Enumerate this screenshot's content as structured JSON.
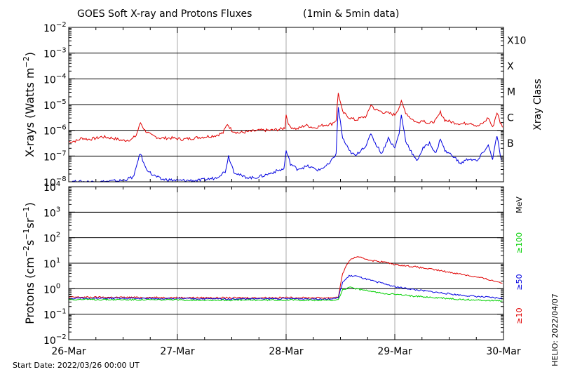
{
  "chart_data": {
    "type": "line",
    "title": "GOES Soft X-ray and Protons Fluxes",
    "subtitle": "(1min & 5min data)",
    "x_tick_labels": [
      "26-Mar",
      "27-Mar",
      "28-Mar",
      "29-Mar",
      "30-Mar"
    ],
    "start_date_label": "Start Date: 2022/03/26 00:00 UT",
    "helio_label": "HELIO: 2022/04/07",
    "x_range_days": [
      0,
      4
    ],
    "panels": [
      {
        "name": "xray",
        "ylabel": "X-rays (Watts m⁻²)",
        "ylabel_parts": {
          "main": "X-rays (Watts m",
          "sup": "−2",
          "end": ")"
        },
        "yscale": "log",
        "ylim": [
          1e-08,
          0.01
        ],
        "y_ticks": [
          {
            "exp": -2,
            "label": "10",
            "sup": "−2"
          },
          {
            "exp": -3,
            "label": "10",
            "sup": "−3"
          },
          {
            "exp": -4,
            "label": "10",
            "sup": "−4"
          },
          {
            "exp": -5,
            "label": "10",
            "sup": "−5"
          },
          {
            "exp": -6,
            "label": "10",
            "sup": "−6"
          },
          {
            "exp": -7,
            "label": "10",
            "sup": "−7"
          },
          {
            "exp": -8,
            "label": "10",
            "sup": "−8"
          }
        ],
        "right_axis_title": "Xray Class",
        "classes": [
          {
            "label": "X10",
            "exp": -3
          },
          {
            "label": "X",
            "exp": -4
          },
          {
            "label": "M",
            "exp": -5
          },
          {
            "label": "C",
            "exp": -6
          },
          {
            "label": "B",
            "exp": -7
          }
        ],
        "grid": true,
        "series": [
          {
            "color": "#e00000",
            "points": [
              [
                0,
                -6.45
              ],
              [
                0.08,
                -6.4
              ],
              [
                0.12,
                -6.3
              ],
              [
                0.18,
                -6.35
              ],
              [
                0.26,
                -6.3
              ],
              [
                0.3,
                -6.25
              ],
              [
                0.4,
                -6.3
              ],
              [
                0.5,
                -6.4
              ],
              [
                0.58,
                -6.35
              ],
              [
                0.62,
                -6.2
              ],
              [
                0.66,
                -5.7
              ],
              [
                0.7,
                -6.0
              ],
              [
                0.76,
                -6.2
              ],
              [
                0.84,
                -6.3
              ],
              [
                0.95,
                -6.3
              ],
              [
                1.05,
                -6.35
              ],
              [
                1.15,
                -6.3
              ],
              [
                1.25,
                -6.25
              ],
              [
                1.35,
                -6.2
              ],
              [
                1.42,
                -6.1
              ],
              [
                1.46,
                -5.75
              ],
              [
                1.5,
                -6.0
              ],
              [
                1.56,
                -6.1
              ],
              [
                1.66,
                -6.05
              ],
              [
                1.76,
                -6.0
              ],
              [
                1.86,
                -6.0
              ],
              [
                1.96,
                -5.95
              ],
              [
                1.99,
                -5.9
              ],
              [
                2.0,
                -5.4
              ],
              [
                2.03,
                -5.85
              ],
              [
                2.1,
                -5.95
              ],
              [
                2.18,
                -5.8
              ],
              [
                2.26,
                -5.9
              ],
              [
                2.34,
                -5.8
              ],
              [
                2.42,
                -5.75
              ],
              [
                2.46,
                -5.6
              ],
              [
                2.48,
                -4.55
              ],
              [
                2.52,
                -5.3
              ],
              [
                2.58,
                -5.5
              ],
              [
                2.64,
                -5.6
              ],
              [
                2.7,
                -5.5
              ],
              [
                2.74,
                -5.45
              ],
              [
                2.78,
                -5.0
              ],
              [
                2.82,
                -5.2
              ],
              [
                2.9,
                -5.3
              ],
              [
                2.96,
                -5.35
              ],
              [
                3.0,
                -5.4
              ],
              [
                3.04,
                -5.1
              ],
              [
                3.06,
                -4.9
              ],
              [
                3.1,
                -5.3
              ],
              [
                3.14,
                -5.5
              ],
              [
                3.2,
                -5.7
              ],
              [
                3.26,
                -5.6
              ],
              [
                3.32,
                -5.75
              ],
              [
                3.38,
                -5.6
              ],
              [
                3.42,
                -5.3
              ],
              [
                3.46,
                -5.6
              ],
              [
                3.54,
                -5.7
              ],
              [
                3.62,
                -5.75
              ],
              [
                3.7,
                -5.7
              ],
              [
                3.76,
                -5.85
              ],
              [
                3.82,
                -5.7
              ],
              [
                3.86,
                -5.5
              ],
              [
                3.9,
                -5.9
              ],
              [
                3.94,
                -5.3
              ],
              [
                3.97,
                -5.7
              ],
              [
                4.0,
                -5.9
              ]
            ]
          },
          {
            "color": "#0000e0",
            "points": [
              [
                0,
                -8.0
              ],
              [
                0.1,
                -8.0
              ],
              [
                0.3,
                -8.0
              ],
              [
                0.5,
                -7.95
              ],
              [
                0.6,
                -7.8
              ],
              [
                0.64,
                -7.1
              ],
              [
                0.66,
                -6.9
              ],
              [
                0.7,
                -7.4
              ],
              [
                0.76,
                -7.7
              ],
              [
                0.85,
                -7.9
              ],
              [
                1.0,
                -7.95
              ],
              [
                1.2,
                -7.95
              ],
              [
                1.35,
                -7.85
              ],
              [
                1.44,
                -7.6
              ],
              [
                1.47,
                -7.0
              ],
              [
                1.52,
                -7.6
              ],
              [
                1.6,
                -7.8
              ],
              [
                1.7,
                -7.85
              ],
              [
                1.8,
                -7.75
              ],
              [
                1.9,
                -7.6
              ],
              [
                1.98,
                -7.5
              ],
              [
                2.0,
                -6.8
              ],
              [
                2.04,
                -7.3
              ],
              [
                2.1,
                -7.5
              ],
              [
                2.2,
                -7.4
              ],
              [
                2.3,
                -7.55
              ],
              [
                2.4,
                -7.3
              ],
              [
                2.46,
                -6.9
              ],
              [
                2.48,
                -5.1
              ],
              [
                2.52,
                -6.3
              ],
              [
                2.58,
                -6.8
              ],
              [
                2.64,
                -7.0
              ],
              [
                2.7,
                -6.7
              ],
              [
                2.74,
                -6.6
              ],
              [
                2.78,
                -6.1
              ],
              [
                2.82,
                -6.5
              ],
              [
                2.88,
                -6.9
              ],
              [
                2.94,
                -6.3
              ],
              [
                3.0,
                -6.7
              ],
              [
                3.04,
                -6.1
              ],
              [
                3.06,
                -5.4
              ],
              [
                3.1,
                -6.4
              ],
              [
                3.16,
                -6.9
              ],
              [
                3.2,
                -7.2
              ],
              [
                3.26,
                -6.7
              ],
              [
                3.32,
                -6.5
              ],
              [
                3.38,
                -6.9
              ],
              [
                3.42,
                -6.3
              ],
              [
                3.46,
                -6.8
              ],
              [
                3.54,
                -7.0
              ],
              [
                3.6,
                -7.3
              ],
              [
                3.68,
                -7.1
              ],
              [
                3.76,
                -7.2
              ],
              [
                3.82,
                -6.8
              ],
              [
                3.86,
                -6.6
              ],
              [
                3.9,
                -7.1
              ],
              [
                3.94,
                -6.2
              ],
              [
                3.97,
                -7.0
              ],
              [
                4.0,
                -7.3
              ]
            ]
          }
        ]
      },
      {
        "name": "protons",
        "ylabel": "Protons (cm⁻²s⁻¹sr⁻¹)",
        "ylabel_parts": {
          "main": "Protons (cm",
          "sup1": "−2",
          "mid1": "s",
          "sup2": "−1",
          "mid2": "sr",
          "sup3": "−1",
          "end": ")"
        },
        "yscale": "log",
        "ylim": [
          0.01,
          10000.0
        ],
        "y_ticks": [
          {
            "exp": 4,
            "label": "10",
            "sup": "4"
          },
          {
            "exp": 3,
            "label": "10",
            "sup": "3"
          },
          {
            "exp": 2,
            "label": "10",
            "sup": "2"
          },
          {
            "exp": 1,
            "label": "10",
            "sup": "1"
          },
          {
            "exp": 0,
            "label": "10",
            "sup": "0"
          },
          {
            "exp": -1,
            "label": "10",
            "sup": "−1"
          },
          {
            "exp": -2,
            "label": "10",
            "sup": "−2"
          }
        ],
        "dashed_threshold": 10,
        "unit_label": "MeV",
        "grid": true,
        "series": [
          {
            "name": "≥10",
            "color": "#e00000",
            "points": [
              [
                0,
                -0.33
              ],
              [
                0.5,
                -0.34
              ],
              [
                1.0,
                -0.35
              ],
              [
                1.5,
                -0.36
              ],
              [
                2.0,
                -0.35
              ],
              [
                2.4,
                -0.36
              ],
              [
                2.48,
                -0.32
              ],
              [
                2.52,
                0.6
              ],
              [
                2.58,
                1.1
              ],
              [
                2.64,
                1.25
              ],
              [
                2.7,
                1.2
              ],
              [
                2.8,
                1.1
              ],
              [
                2.9,
                1.05
              ],
              [
                3.0,
                0.95
              ],
              [
                3.2,
                0.85
              ],
              [
                3.4,
                0.72
              ],
              [
                3.6,
                0.58
              ],
              [
                3.8,
                0.42
              ],
              [
                4.0,
                0.22
              ]
            ]
          },
          {
            "name": "≥50",
            "color": "#0000e0",
            "points": [
              [
                0,
                -0.38
              ],
              [
                0.5,
                -0.38
              ],
              [
                1.0,
                -0.39
              ],
              [
                1.5,
                -0.4
              ],
              [
                2.0,
                -0.39
              ],
              [
                2.4,
                -0.4
              ],
              [
                2.48,
                -0.36
              ],
              [
                2.52,
                0.25
              ],
              [
                2.58,
                0.5
              ],
              [
                2.64,
                0.5
              ],
              [
                2.7,
                0.42
              ],
              [
                2.8,
                0.3
              ],
              [
                2.9,
                0.2
              ],
              [
                3.0,
                0.08
              ],
              [
                3.2,
                -0.05
              ],
              [
                3.4,
                -0.15
              ],
              [
                3.6,
                -0.25
              ],
              [
                3.8,
                -0.32
              ],
              [
                4.0,
                -0.38
              ]
            ]
          },
          {
            "name": "≥100",
            "color": "#00d000",
            "points": [
              [
                0,
                -0.42
              ],
              [
                0.5,
                -0.43
              ],
              [
                1.0,
                -0.44
              ],
              [
                1.5,
                -0.45
              ],
              [
                2.0,
                -0.44
              ],
              [
                2.4,
                -0.46
              ],
              [
                2.48,
                -0.42
              ],
              [
                2.52,
                -0.05
              ],
              [
                2.58,
                0.05
              ],
              [
                2.64,
                0.0
              ],
              [
                2.7,
                -0.05
              ],
              [
                2.8,
                -0.12
              ],
              [
                2.9,
                -0.18
              ],
              [
                3.0,
                -0.22
              ],
              [
                3.2,
                -0.3
              ],
              [
                3.4,
                -0.36
              ],
              [
                3.6,
                -0.42
              ],
              [
                3.8,
                -0.45
              ],
              [
                4.0,
                -0.48
              ]
            ]
          }
        ]
      }
    ]
  }
}
